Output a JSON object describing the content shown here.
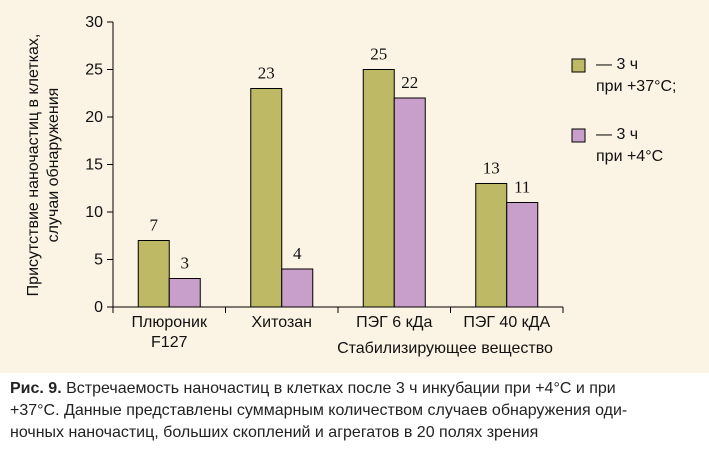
{
  "chart_data": {
    "type": "bar",
    "categories": [
      "Плюроник F127",
      "Хитозан",
      "ПЭГ 6 кДа",
      "ПЭГ 40 кДА"
    ],
    "category_lines": [
      [
        "Плюроник",
        "F127"
      ],
      [
        "Хитозан"
      ],
      [
        "ПЭГ 6 кДа"
      ],
      [
        "ПЭГ 40 кДА"
      ]
    ],
    "series": [
      {
        "name": "— 3 ч при +37°C;",
        "name_lines": [
          "— 3 ч",
          "при +37°C;"
        ],
        "color": "#bdb964",
        "values": [
          7,
          23,
          25,
          13
        ]
      },
      {
        "name": "— 3 ч при +4°C",
        "name_lines": [
          "— 3 ч",
          "при +4°C"
        ],
        "color": "#c89fcb",
        "values": [
          3,
          4,
          22,
          11
        ]
      }
    ],
    "ylabel_lines": [
      "Присутствие наночастиц в клетках,",
      "случаи обнаружения"
    ],
    "xlabel": "Стабилизирующее вещество",
    "ylim": [
      0,
      30
    ],
    "yticks": [
      "0",
      "5",
      "10",
      "15",
      "20",
      "25",
      "30"
    ],
    "grid": false,
    "legend": "right",
    "data_labels": true
  },
  "caption": {
    "label": "Рис. 9.",
    "lines": [
      "Встречаемость наночастиц в клетках после 3 ч инкубации при +4°C и при",
      "+37°C. Данные представлены суммарным количеством случаев обнаружения оди-",
      "ночных наночастиц, больших скоплений и агрегатов в 20 полях зрения"
    ]
  },
  "colors": {
    "panel_background": "#fbf3e3",
    "axis": "#000000"
  }
}
